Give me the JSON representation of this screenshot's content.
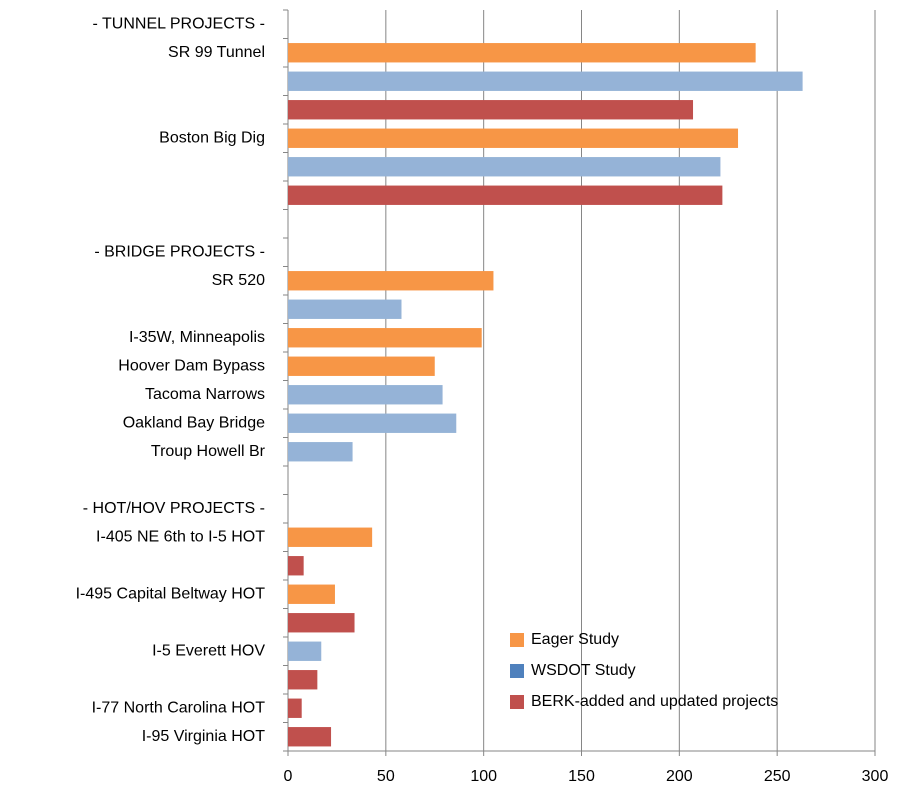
{
  "chart_data": {
    "type": "barh",
    "categories": [
      "- TUNNEL PROJECTS -",
      "SR 99 Tunnel",
      null,
      null,
      "Boston Big Dig",
      null,
      null,
      null,
      "- BRIDGE PROJECTS -",
      "SR 520",
      null,
      "I-35W, Minneapolis",
      "Hoover Dam Bypass",
      "Tacoma Narrows",
      "Oakland Bay Bridge",
      "Troup Howell Br",
      null,
      "- HOT/HOV PROJECTS -",
      "I-405 NE 6th to I-5 HOT",
      null,
      "I-495 Capital Beltway HOT",
      null,
      "I-5 Everett HOV",
      null,
      "I-77 North Carolina HOT",
      "I-95 Virginia HOT"
    ],
    "series": [
      {
        "name": "Eager Study",
        "color": "#f79646",
        "legend_color": "#f79646",
        "values": [
          null,
          239,
          null,
          null,
          230,
          null,
          null,
          null,
          null,
          105,
          null,
          99,
          75,
          null,
          null,
          null,
          null,
          null,
          43,
          null,
          24,
          null,
          null,
          null,
          null,
          null
        ]
      },
      {
        "name": "WSDOT Study",
        "color": "#95b3d7",
        "legend_color": "#4f81bd",
        "values": [
          null,
          null,
          263,
          null,
          null,
          221,
          null,
          null,
          null,
          null,
          58,
          null,
          null,
          79,
          86,
          33,
          null,
          null,
          null,
          null,
          null,
          null,
          17,
          null,
          null,
          null
        ]
      },
      {
        "name": "BERK-added and updated projects",
        "color": "#c0504d",
        "legend_color": "#c0504d",
        "values": [
          null,
          null,
          null,
          207,
          null,
          null,
          222,
          null,
          null,
          null,
          null,
          null,
          null,
          null,
          null,
          null,
          null,
          null,
          null,
          8,
          null,
          34,
          null,
          15,
          7,
          22
        ]
      }
    ],
    "xlim": [
      0,
      300
    ],
    "xticks": [
      0,
      50,
      100,
      150,
      200,
      250,
      300
    ],
    "grid": true
  }
}
